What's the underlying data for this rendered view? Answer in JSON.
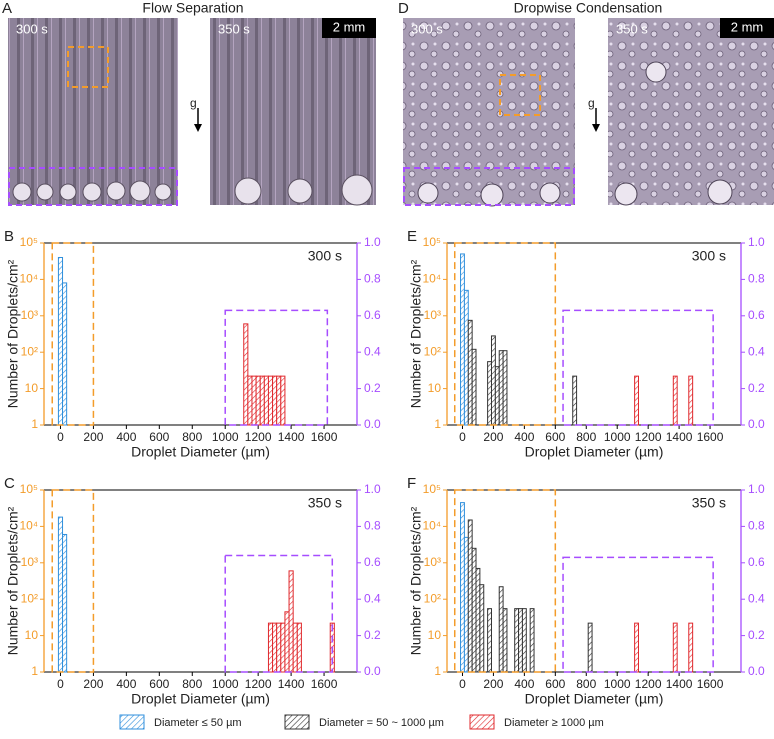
{
  "figure": {
    "panels": [
      {
        "letter": "A",
        "title": "Flow Separation",
        "times": [
          "300 s",
          "350 s"
        ],
        "scale": "2 mm",
        "gravity": "g"
      },
      {
        "letter": "D",
        "title": "Dropwise Condensation",
        "times": [
          "300 s",
          "350 s"
        ],
        "scale": "2 mm",
        "gravity": "g"
      }
    ]
  },
  "chart_data": [
    {
      "panel": "B",
      "type": "bar",
      "time": "300 s",
      "x_label": "Droplet Diameter (µm)",
      "y_label": "Number of Droplets/cm²",
      "log_y": true,
      "yaxis_color": "#f39c2a",
      "y2axis_color": "#a64dff",
      "xlim": [
        -100,
        1800
      ],
      "xticks": [
        0,
        200,
        400,
        600,
        800,
        1000,
        1200,
        1400,
        1600
      ],
      "ylim": [
        1,
        100000
      ],
      "yticks": [
        1,
        10,
        {
          "value": 100,
          "label": "10²"
        },
        {
          "value": 1000,
          "label": "10³"
        },
        {
          "value": 10000,
          "label": "10⁴"
        },
        {
          "value": 100000,
          "label": "10⁵"
        }
      ],
      "y2lim": [
        0,
        1
      ],
      "y2ticks": [
        {
          "value": 0,
          "label": "0.0"
        },
        {
          "value": 0.2,
          "label": "0.2"
        },
        {
          "value": 0.4,
          "label": "0.4"
        },
        {
          "value": 0.6,
          "label": "0.6"
        },
        {
          "value": 0.8,
          "label": "0.8"
        },
        {
          "value": 1,
          "label": "1.0"
        }
      ],
      "boxes": [
        {
          "color": "#f39c2a",
          "xlim": [
            -50,
            200
          ],
          "top": 100000
        },
        {
          "color": "#a64dff",
          "xlim": [
            1000,
            1620
          ],
          "top": 0.63,
          "axis": "y2"
        }
      ],
      "series": [
        {
          "name": "Diameter ≤ 50 µm",
          "color": "#2f8fdc",
          "x": [
            0,
            25
          ],
          "values": [
            40000,
            8000
          ]
        },
        {
          "name": "Diameter = 50 ~ 1000 µm",
          "color": "#333333",
          "x": [],
          "values": []
        },
        {
          "name": "Diameter ≥ 1000 µm",
          "color": "#e0282c",
          "x": [
            1125,
            1150,
            1175,
            1200,
            1225,
            1250,
            1275,
            1300,
            1325,
            1350
          ],
          "values": [
            600,
            22,
            22,
            22,
            22,
            22,
            22,
            22,
            22,
            22
          ]
        }
      ]
    },
    {
      "panel": "C",
      "type": "bar",
      "time": "350 s",
      "x_label": "Droplet Diameter (µm)",
      "y_label": "Number of Droplets/cm²",
      "log_y": true,
      "yaxis_color": "#f39c2a",
      "y2axis_color": "#a64dff",
      "xlim": [
        -100,
        1800
      ],
      "xticks": [
        0,
        200,
        400,
        600,
        800,
        1000,
        1200,
        1400,
        1600
      ],
      "ylim": [
        1,
        100000
      ],
      "yticks": [
        1,
        10,
        {
          "value": 100,
          "label": "10²"
        },
        {
          "value": 1000,
          "label": "10³"
        },
        {
          "value": 10000,
          "label": "10⁴"
        },
        {
          "value": 100000,
          "label": "10⁵"
        }
      ],
      "y2lim": [
        0,
        1
      ],
      "y2ticks": [
        {
          "value": 0,
          "label": "0.0"
        },
        {
          "value": 0.2,
          "label": "0.2"
        },
        {
          "value": 0.4,
          "label": "0.4"
        },
        {
          "value": 0.6,
          "label": "0.6"
        },
        {
          "value": 0.8,
          "label": "0.8"
        },
        {
          "value": 1,
          "label": "1.0"
        }
      ],
      "boxes": [
        {
          "color": "#f39c2a",
          "xlim": [
            -50,
            200
          ],
          "top": 100000
        },
        {
          "color": "#a64dff",
          "xlim": [
            1000,
            1650
          ],
          "top": 0.64,
          "axis": "y2"
        }
      ],
      "series": [
        {
          "name": "Diameter ≤ 50 µm",
          "color": "#2f8fdc",
          "x": [
            0,
            25
          ],
          "values": [
            18000,
            6000
          ]
        },
        {
          "name": "Diameter = 50 ~ 1000 µm",
          "color": "#333333",
          "x": [],
          "values": []
        },
        {
          "name": "Diameter ≥ 1000 µm",
          "color": "#e0282c",
          "x": [
            1275,
            1300,
            1325,
            1350,
            1375,
            1400,
            1425,
            1450,
            1650
          ],
          "values": [
            22,
            22,
            22,
            22,
            45,
            600,
            22,
            22,
            22
          ]
        }
      ]
    },
    {
      "panel": "E",
      "type": "bar",
      "time": "300 s",
      "x_label": "Droplet Diameter (µm)",
      "y_label": "Number of Droplets/cm²",
      "log_y": true,
      "yaxis_color": "#f39c2a",
      "y2axis_color": "#a64dff",
      "xlim": [
        -100,
        1800
      ],
      "xticks": [
        0,
        200,
        400,
        600,
        800,
        1000,
        1200,
        1400,
        1600
      ],
      "ylim": [
        1,
        100000
      ],
      "yticks": [
        1,
        10,
        {
          "value": 100,
          "label": "10²"
        },
        {
          "value": 1000,
          "label": "10³"
        },
        {
          "value": 10000,
          "label": "10⁴"
        },
        {
          "value": 100000,
          "label": "10⁵"
        }
      ],
      "y2lim": [
        0,
        1
      ],
      "y2ticks": [
        {
          "value": 0,
          "label": "0.0"
        },
        {
          "value": 0.2,
          "label": "0.2"
        },
        {
          "value": 0.4,
          "label": "0.4"
        },
        {
          "value": 0.6,
          "label": "0.6"
        },
        {
          "value": 0.8,
          "label": "0.8"
        },
        {
          "value": 1,
          "label": "1.0"
        }
      ],
      "boxes": [
        {
          "color": "#f39c2a",
          "xlim": [
            -50,
            600
          ],
          "top": 100000
        },
        {
          "color": "#a64dff",
          "xlim": [
            650,
            1620
          ],
          "top": 0.63,
          "axis": "y2"
        }
      ],
      "series": [
        {
          "name": "Diameter ≤ 50 µm",
          "color": "#2f8fdc",
          "x": [
            0,
            25
          ],
          "values": [
            50000,
            5000
          ]
        },
        {
          "name": "Diameter = 50 ~ 1000 µm",
          "color": "#333333",
          "x": [
            50,
            75,
            175,
            200,
            225,
            250,
            275,
            725
          ],
          "values": [
            750,
            120,
            55,
            280,
            40,
            110,
            110,
            22
          ]
        },
        {
          "name": "Diameter ≥ 1000 µm",
          "color": "#e0282c",
          "x": [
            1125,
            1375,
            1475
          ],
          "values": [
            22,
            22,
            22
          ]
        }
      ]
    },
    {
      "panel": "F",
      "type": "bar",
      "time": "350 s",
      "x_label": "Droplet Diameter (µm)",
      "y_label": "Number of Droplets/cm²",
      "log_y": true,
      "yaxis_color": "#f39c2a",
      "y2axis_color": "#a64dff",
      "xlim": [
        -100,
        1800
      ],
      "xticks": [
        0,
        200,
        400,
        600,
        800,
        1000,
        1200,
        1400,
        1600
      ],
      "ylim": [
        1,
        100000
      ],
      "yticks": [
        1,
        10,
        {
          "value": 100,
          "label": "10²"
        },
        {
          "value": 1000,
          "label": "10³"
        },
        {
          "value": 10000,
          "label": "10⁴"
        },
        {
          "value": 100000,
          "label": "10⁵"
        }
      ],
      "y2lim": [
        0,
        1
      ],
      "y2ticks": [
        {
          "value": 0,
          "label": "0.0"
        },
        {
          "value": 0.2,
          "label": "0.2"
        },
        {
          "value": 0.4,
          "label": "0.4"
        },
        {
          "value": 0.6,
          "label": "0.6"
        },
        {
          "value": 0.8,
          "label": "0.8"
        },
        {
          "value": 1,
          "label": "1.0"
        }
      ],
      "boxes": [
        {
          "color": "#f39c2a",
          "xlim": [
            -50,
            600
          ],
          "top": 100000
        },
        {
          "color": "#a64dff",
          "xlim": [
            650,
            1620
          ],
          "top": 0.63,
          "axis": "y2"
        }
      ],
      "series": [
        {
          "name": "Diameter ≤ 50 µm",
          "color": "#2f8fdc",
          "x": [
            0,
            25
          ],
          "values": [
            45000,
            5000
          ]
        },
        {
          "name": "Diameter = 50 ~ 1000 µm",
          "color": "#333333",
          "x": [
            50,
            75,
            100,
            125,
            175,
            250,
            275,
            350,
            375,
            400,
            450,
            825
          ],
          "values": [
            15000,
            2500,
            700,
            250,
            55,
            220,
            55,
            55,
            55,
            55,
            55,
            22
          ]
        },
        {
          "name": "Diameter ≥ 1000 µm",
          "color": "#e0282c",
          "x": [
            1125,
            1375,
            1475
          ],
          "values": [
            22,
            22,
            22
          ]
        }
      ]
    }
  ]
}
